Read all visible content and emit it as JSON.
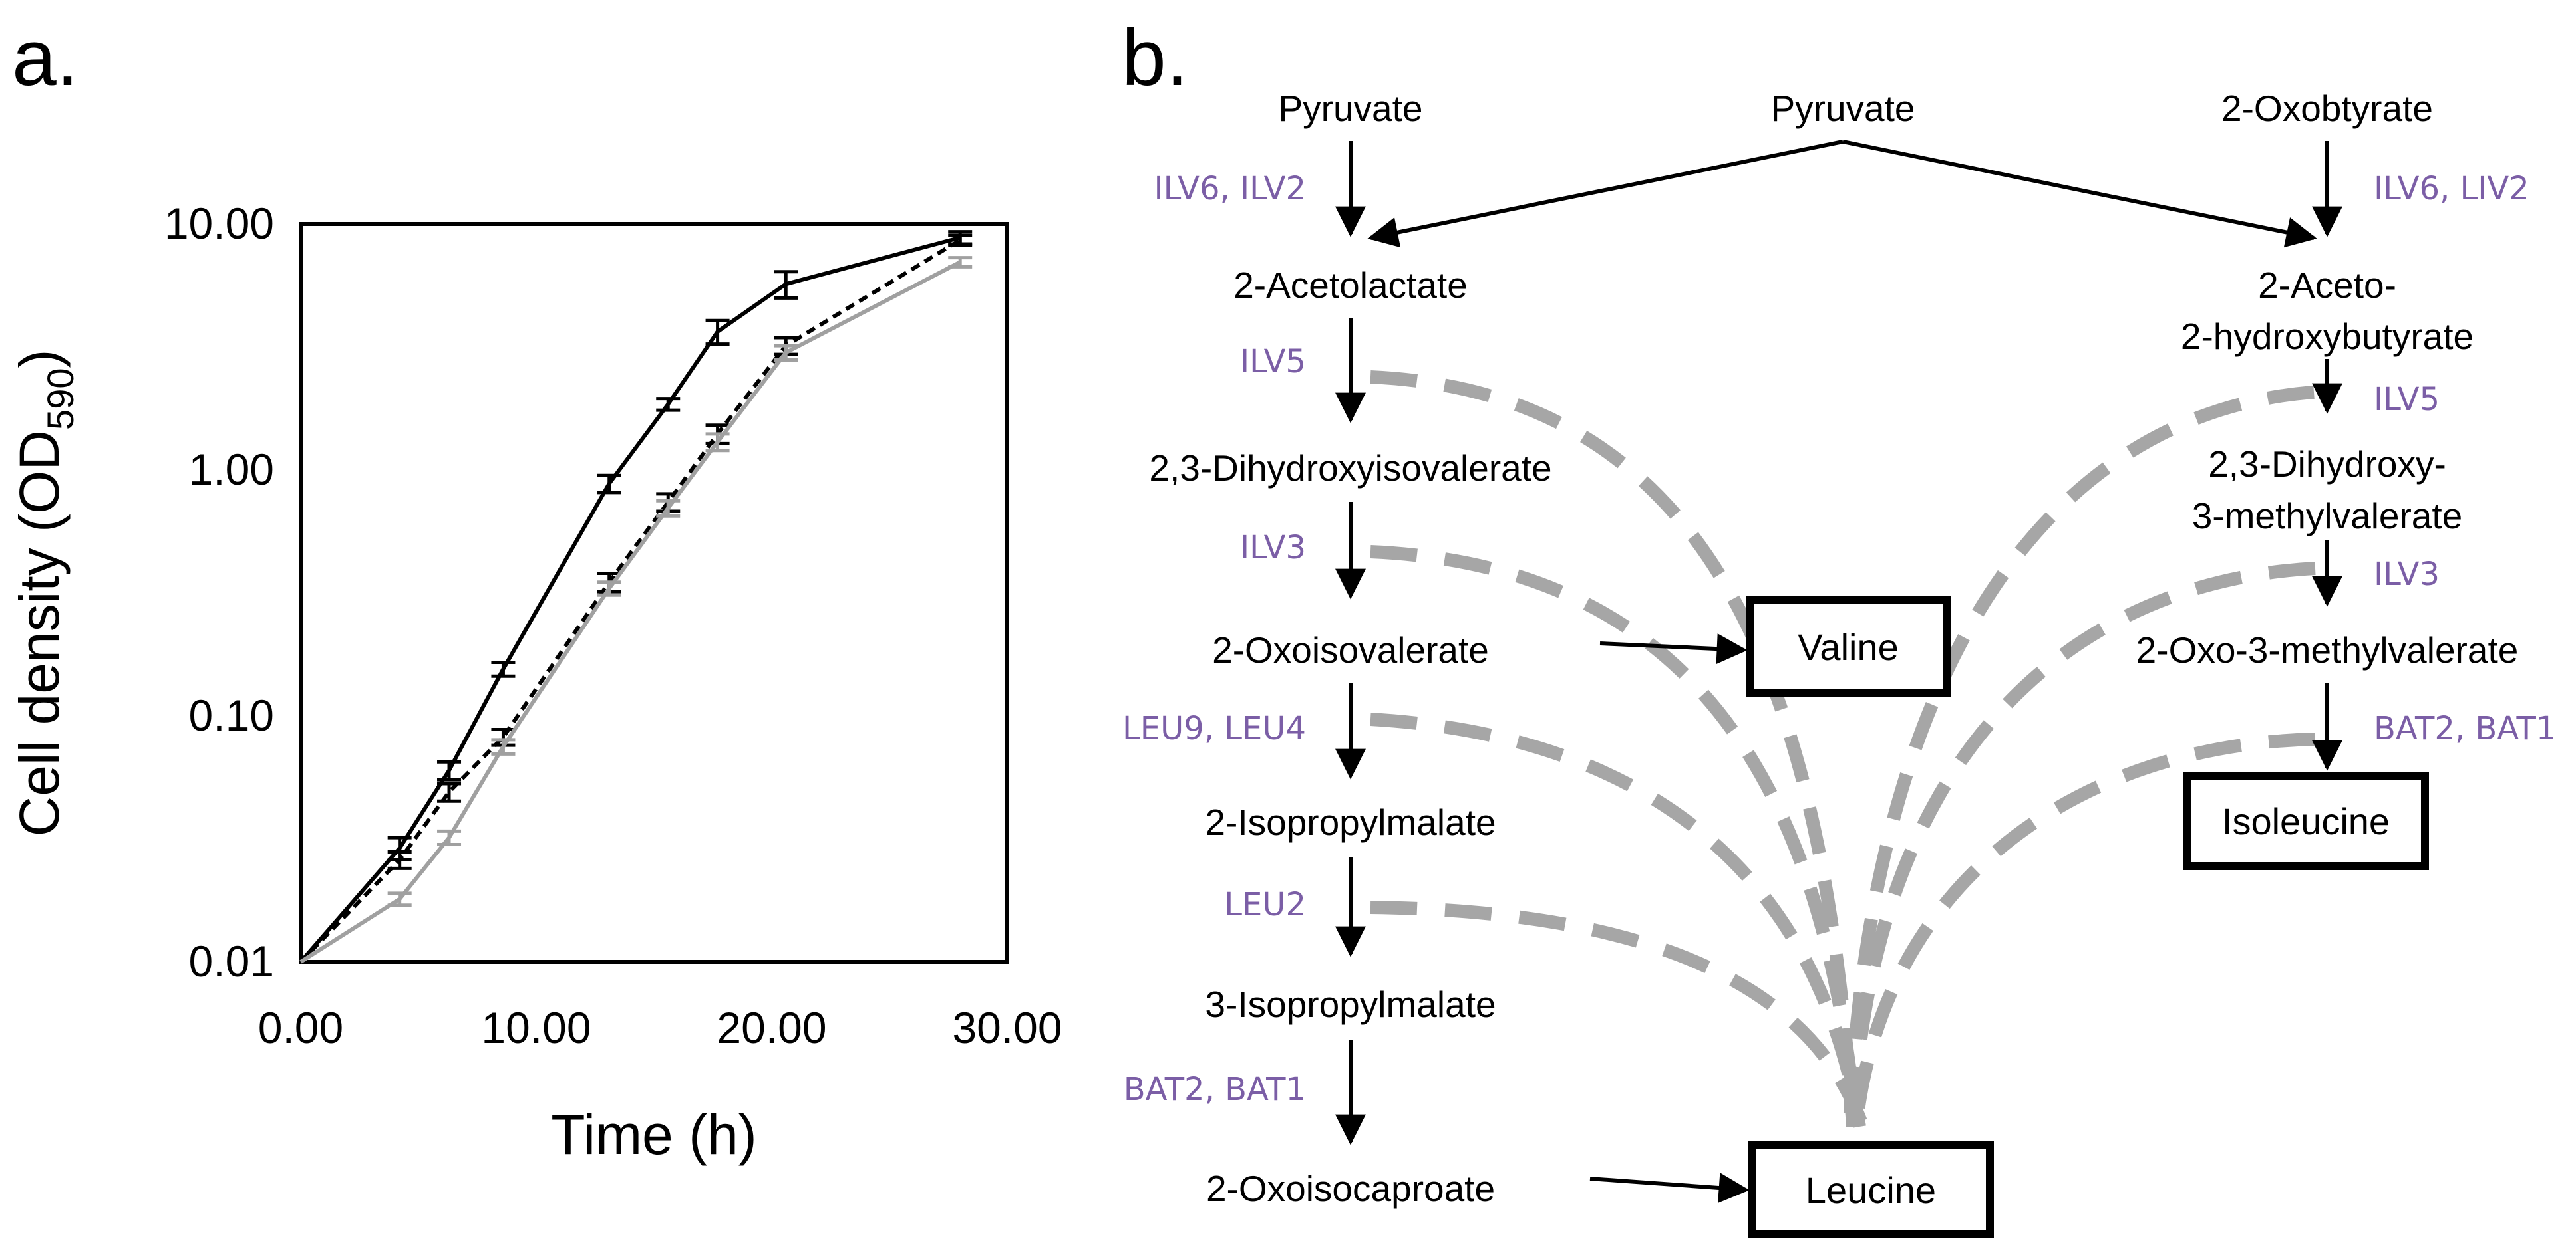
{
  "panel_a": {
    "label": "a.",
    "chart_data": {
      "type": "line",
      "title": "",
      "xlabel": "Time (h)",
      "ylabel": "Cell density (OD",
      "ylabel_sub": "590",
      "ylabel_close": ")",
      "xlim": [
        0,
        30
      ],
      "ylim": [
        0.01,
        10
      ],
      "yscale": "log",
      "xticks": [
        {
          "value": 0,
          "label": "0.00"
        },
        {
          "value": 10,
          "label": "10.00"
        },
        {
          "value": 20,
          "label": "20.00"
        },
        {
          "value": 30,
          "label": "30.00"
        }
      ],
      "yticks": [
        {
          "value": 0.01,
          "label": "0.01"
        },
        {
          "value": 0.1,
          "label": "0.10"
        },
        {
          "value": 1,
          "label": "1.00"
        },
        {
          "value": 10,
          "label": "10.00"
        }
      ],
      "series": [
        {
          "name": "solid black",
          "color": "#000000",
          "dash": "",
          "x": [
            0,
            4.2,
            6.3,
            8.6,
            13.1,
            15.6,
            17.7,
            20.6,
            28.0
          ],
          "y": [
            0.01,
            0.029,
            0.06,
            0.155,
            0.88,
            1.85,
            3.65,
            5.7,
            8.8
          ],
          "err": [
            0,
            0.003,
            0.005,
            0.01,
            0.07,
            0.1,
            0.4,
            0.7,
            0.5
          ]
        },
        {
          "name": "dashed black",
          "color": "#000000",
          "dash": "14 9",
          "x": [
            0,
            4.2,
            6.3,
            8.6,
            13.1,
            15.6,
            17.7,
            20.6,
            28.0
          ],
          "y": [
            0.01,
            0.026,
            0.049,
            0.082,
            0.35,
            0.74,
            1.4,
            3.2,
            8.6
          ],
          "err": [
            0,
            0.002,
            0.004,
            0.006,
            0.03,
            0.06,
            0.12,
            0.25,
            0.4
          ]
        },
        {
          "name": "gray",
          "color": "#a0a0a0",
          "dash": "",
          "x": [
            0,
            4.2,
            6.3,
            8.6,
            13.1,
            15.6,
            17.7,
            20.6,
            28.0
          ],
          "y": [
            0.01,
            0.018,
            0.032,
            0.075,
            0.33,
            0.7,
            1.3,
            3.0,
            7.0
          ],
          "err": [
            0,
            0.001,
            0.002,
            0.005,
            0.02,
            0.05,
            0.1,
            0.2,
            0.3
          ]
        }
      ]
    }
  },
  "panel_b": {
    "label": "b.",
    "colors": {
      "enzyme": "#7b5ea6",
      "dash": "#a6a6a6"
    },
    "metabolites": {
      "pyruvate_left": "Pyruvate",
      "pyruvate_center": "Pyruvate",
      "oxobutyrate": "2-Oxobtyrate",
      "acetolactate": "2-Acetolactate",
      "acetohydroxybutyrate_l1": "2-Aceto-",
      "acetohydroxybutyrate_l2": "2-hydroxybutyrate",
      "dihydroxyisovalerate": "2,3-Dihydroxyisovalerate",
      "dihydroxymethylvalerate_l1": "2,3-Dihydroxy-",
      "dihydroxymethylvalerate_l2": "3-methylvalerate",
      "oxoisovalerate": "2-Oxoisovalerate",
      "oxomethylvalerate": "2-Oxo-3-methylvalerate",
      "isopropylmalate2": "2-Isopropylmalate",
      "isopropylmalate3": "3-Isopropylmalate",
      "oxoisocaproate": "2-Oxoisocaproate"
    },
    "enzymes": {
      "left_ilv6_ilv2": "ILV6, ILV2",
      "left_ilv5": "ILV5",
      "left_ilv3": "ILV3",
      "left_leu9_leu4": "LEU9, LEU4",
      "left_leu2": "LEU2",
      "left_bat": "BAT2, BAT1",
      "right_ilv6_liv2": "ILV6, LIV2",
      "right_ilv5": "ILV5",
      "right_ilv3": "ILV3",
      "right_bat": "BAT2, BAT1"
    },
    "products": {
      "valine": "Valine",
      "isoleucine": "Isoleucine",
      "leucine": "Leucine"
    }
  }
}
